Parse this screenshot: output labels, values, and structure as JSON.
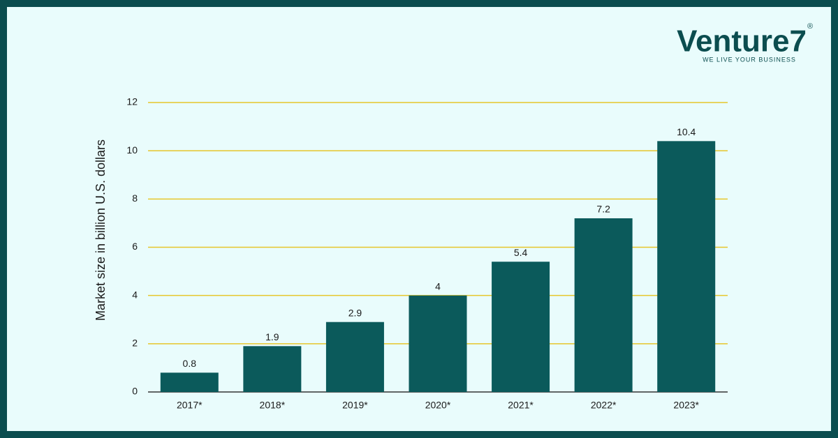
{
  "chart_data": {
    "type": "bar",
    "y_axis_label": "Market size in billion U.S. dollars",
    "categories": [
      "2017*",
      "2018*",
      "2019*",
      "2020*",
      "2021*",
      "2022*",
      "2023*"
    ],
    "values": [
      0.8,
      1.9,
      2.9,
      4,
      5.4,
      7.2,
      10.4
    ],
    "color": "#0b5a5b",
    "ylim": [
      0,
      12
    ],
    "yticks": [
      0,
      2,
      4,
      6,
      8,
      10,
      12
    ],
    "grid": true,
    "grid_color": "#e6c62b"
  },
  "logo": {
    "brand": "Venture7",
    "registered": "®",
    "tagline": "WE LIVE YOUR BUSINESS"
  }
}
